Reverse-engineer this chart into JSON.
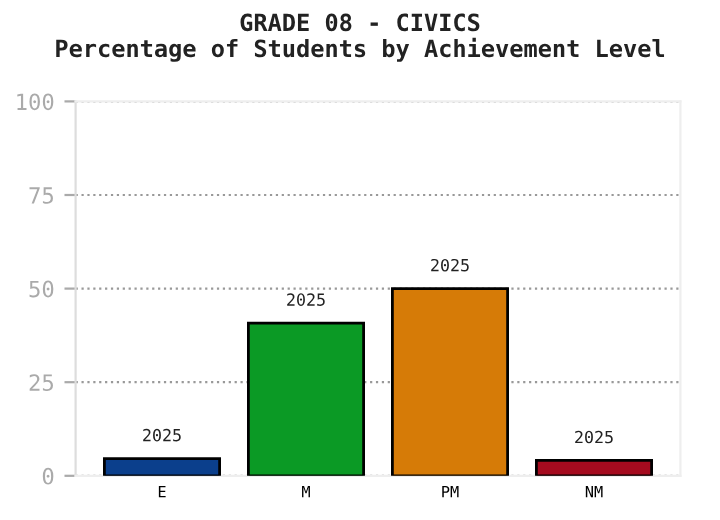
{
  "chart_data": {
    "type": "bar",
    "title": "GRADE 08 - CIVICS\nPercentage of Students by Achievement Level",
    "categories": [
      "E",
      "M",
      "PM",
      "NM"
    ],
    "values": [
      4.6,
      40.8,
      50,
      4.1
    ],
    "colors": [
      "#0b3f8c",
      "#0b9a25",
      "#d67b07",
      "#a50b1f"
    ],
    "annotations": [
      {
        "text": "2025",
        "x": "E",
        "y": 4.6
      },
      {
        "text": "2025",
        "x": "M",
        "y": 40.8
      },
      {
        "text": "2025",
        "x": "PM",
        "y": 50
      },
      {
        "text": "2025",
        "x": "NM",
        "y": 4.1
      }
    ],
    "ylim": [
      0,
      100
    ],
    "yticks": [
      0,
      25,
      50,
      75,
      100
    ],
    "grid": "y"
  }
}
